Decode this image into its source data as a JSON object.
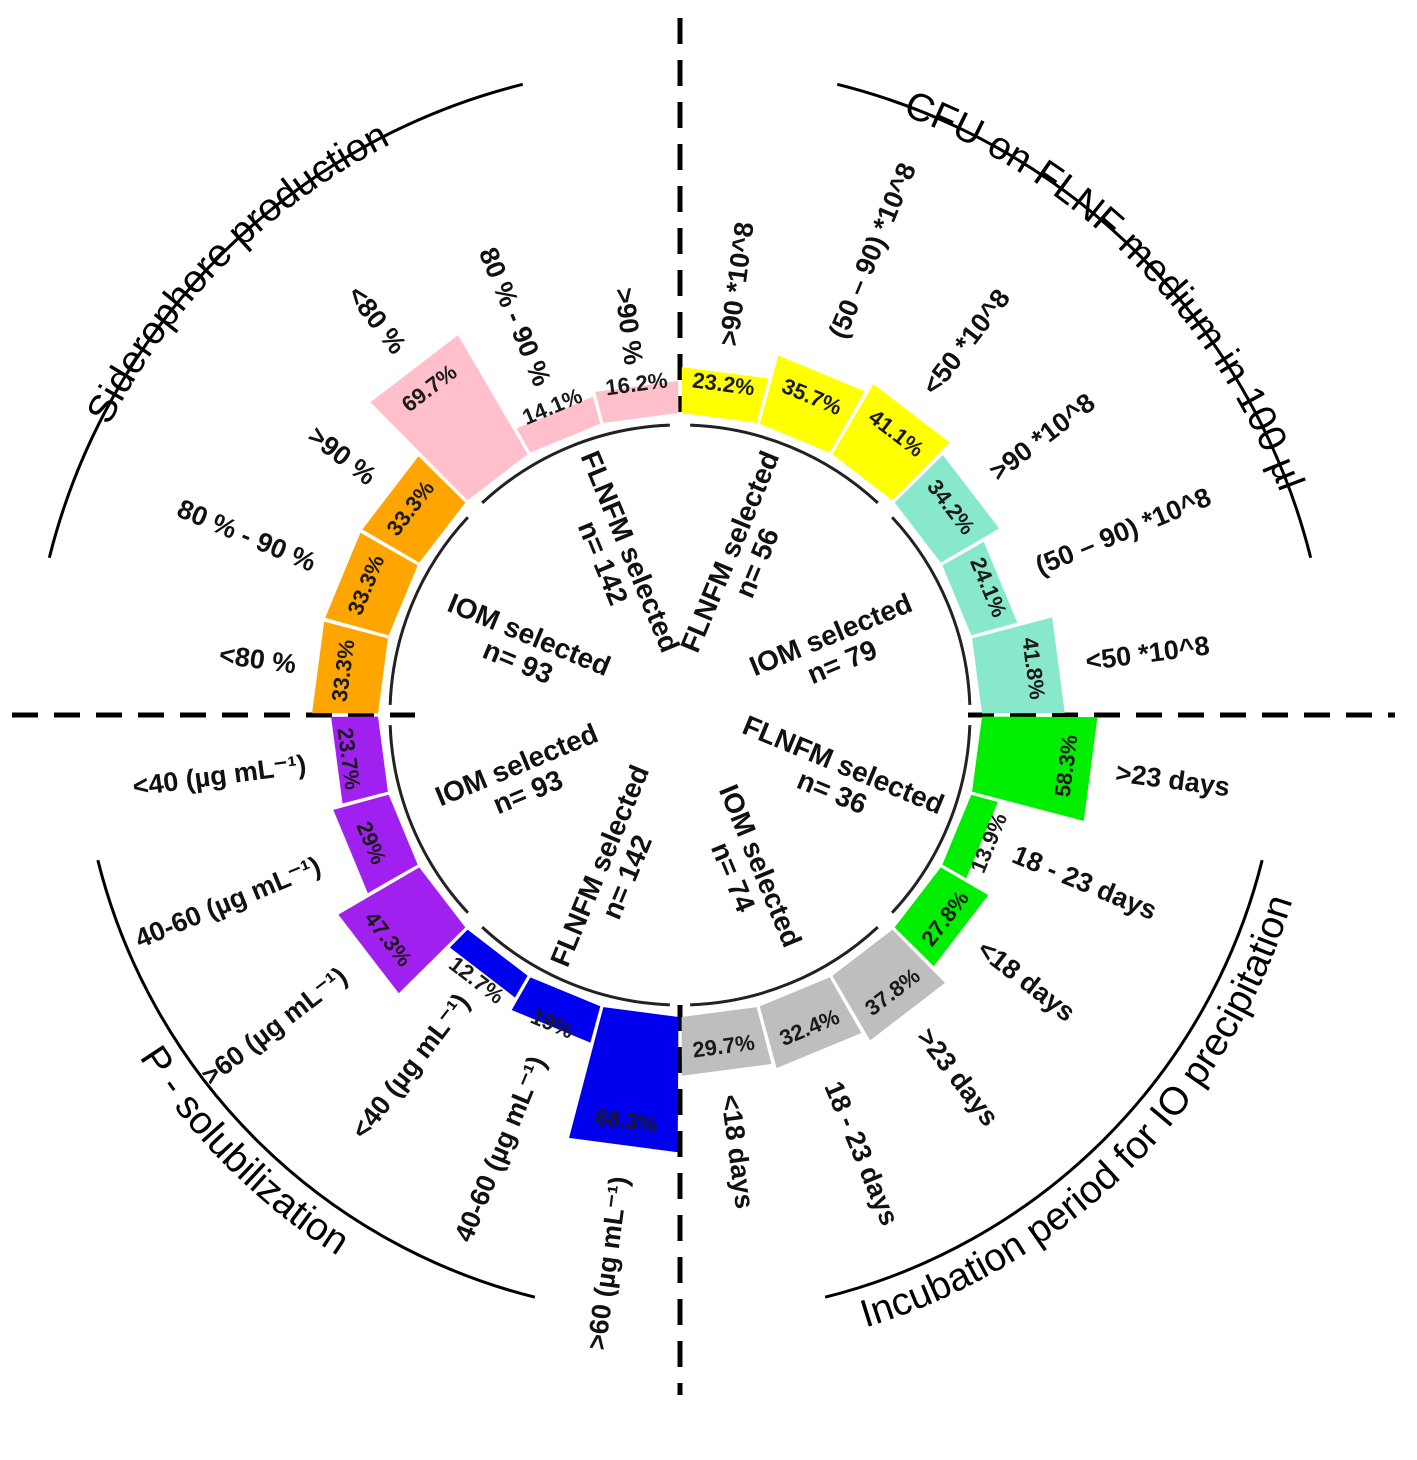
{
  "chart_data": {
    "type": "radial-bar",
    "sectors": [
      {
        "title": "Siderophore production",
        "groups": [
          {
            "label_lines": [
              "IOM selected",
              "n= 93"
            ],
            "color": "#FFA500",
            "bars": [
              {
                "category": "<80 %",
                "value": 33.3,
                "value_label": "33.3%"
              },
              {
                "category": "80 % - 90 %",
                "value": 33.3,
                "value_label": "33.3%"
              },
              {
                "category": ">90 %",
                "value": 33.3,
                "value_label": "33.3%"
              }
            ]
          },
          {
            "label_lines": [
              "FLNFM selected",
              "n= 142"
            ],
            "color": "#FFC0CB",
            "bars": [
              {
                "category": "<80 %",
                "value": 69.7,
                "value_label": "69.7%"
              },
              {
                "category": "80 % - 90 %",
                "value": 14.1,
                "value_label": "14.1%"
              },
              {
                "category": ">90 %",
                "value": 16.2,
                "value_label": "16.2%"
              }
            ]
          }
        ]
      },
      {
        "title": "CFU on FLNF medium in 100 µl",
        "groups": [
          {
            "label_lines": [
              "FLNFM selected",
              "n= 56"
            ],
            "color": "#FFFF00",
            "bars": [
              {
                "category": ">90 *10^8",
                "value": 23.2,
                "value_label": "23.2%"
              },
              {
                "category": "(50 – 90) *10^8",
                "value": 35.7,
                "value_label": "35.7%"
              },
              {
                "category": "<50 *10^8",
                "value": 41.1,
                "value_label": "41.1%"
              }
            ]
          },
          {
            "label_lines": [
              "IOM selected",
              "n= 79"
            ],
            "color": "#88E8CC",
            "bars": [
              {
                "category": ">90 *10^8",
                "value": 34.2,
                "value_label": "34.2%"
              },
              {
                "category": "(50 – 90) *10^8",
                "value": 24.1,
                "value_label": "24.1%"
              },
              {
                "category": "<50 *10^8",
                "value": 41.8,
                "value_label": "41.8%"
              }
            ]
          }
        ]
      },
      {
        "title": "Incubation period for IO precipitation",
        "groups": [
          {
            "label_lines": [
              "FLNFM selected",
              "n= 36"
            ],
            "color": "#00EE00",
            "bars": [
              {
                "category": ">23 days",
                "value": 58.3,
                "value_label": "58.3%"
              },
              {
                "category": "18 - 23 days",
                "value": 13.9,
                "value_label": "13.9%"
              },
              {
                "category": "<18 days",
                "value": 27.8,
                "value_label": "27.8%"
              }
            ]
          },
          {
            "label_lines": [
              "IOM selected",
              "n= 74"
            ],
            "color": "#BEBEBE",
            "bars": [
              {
                "category": ">23 days",
                "value": 37.8,
                "value_label": "37.8%"
              },
              {
                "category": "18 - 23 days",
                "value": 32.4,
                "value_label": "32.4%"
              },
              {
                "category": "<18 days",
                "value": 29.7,
                "value_label": "29.7%"
              }
            ]
          }
        ]
      },
      {
        "title": "P - solubilization",
        "groups": [
          {
            "label_lines": [
              "FLNFM selected",
              "n= 142"
            ],
            "color": "#0000EE",
            "bars": [
              {
                "category": ">60 (µg mL⁻¹)",
                "value": 68.3,
                "value_label": "68.3%"
              },
              {
                "category": "40-60 (µg mL⁻¹)",
                "value": 19,
                "value_label": "19%"
              },
              {
                "category": "<40 (µg mL⁻¹)",
                "value": 12.7,
                "value_label": "12.7%"
              }
            ]
          },
          {
            "label_lines": [
              "IOM selected",
              "n= 93"
            ],
            "color": "#A020F0",
            "bars": [
              {
                "category": ">60 (µg mL⁻¹)",
                "value": 47.3,
                "value_label": "47.3%"
              },
              {
                "category": "40-60 (µg mL⁻¹)",
                "value": 29,
                "value_label": "29%"
              },
              {
                "category": "<40 (µg mL⁻¹)",
                "value": 23.7,
                "value_label": "23.7%"
              }
            ]
          }
        ]
      }
    ],
    "value_axis": {
      "min": 0,
      "max": 100,
      "unit": "%"
    },
    "grid": false
  }
}
